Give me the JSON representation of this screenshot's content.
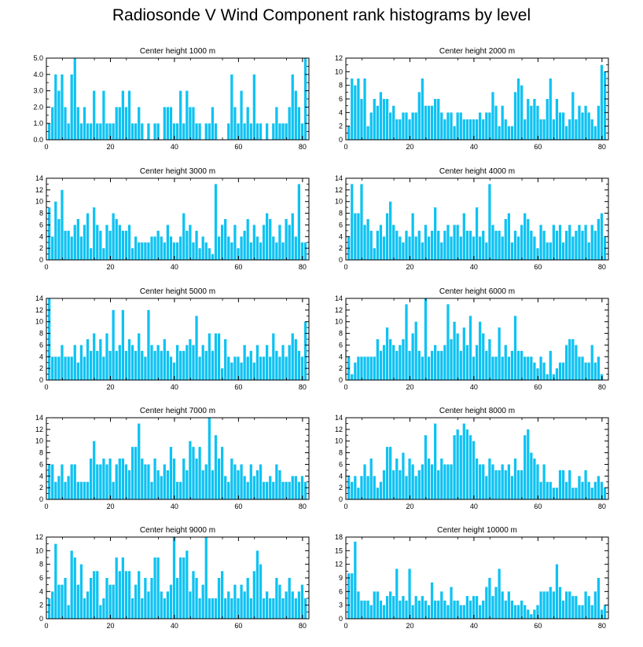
{
  "title": "Radiosonde V Wind Component rank histograms by level",
  "colors": {
    "bar": "#0ec2f2",
    "bar_edge": "#ffffff",
    "axis": "#000000"
  },
  "chart_data": [
    {
      "type": "bar",
      "title": "Center height 1000 m",
      "xlim": [
        0,
        82
      ],
      "ylim": [
        0,
        5
      ],
      "yticks": [
        0,
        1,
        2,
        3,
        4,
        5
      ],
      "ytick_labels": [
        "0.0",
        "1.0",
        "2.0",
        "3.0",
        "4.0",
        "5.0"
      ],
      "xticks": [
        0,
        20,
        40,
        60,
        80
      ],
      "xtick_labels": [
        "0",
        "20",
        "40",
        "60",
        "80"
      ],
      "values": [
        1,
        2,
        4,
        3,
        4,
        2,
        1,
        4,
        5,
        2,
        1,
        2,
        1,
        1,
        3,
        1,
        1,
        3,
        1,
        1,
        1,
        2,
        2,
        3,
        2,
        3,
        1,
        1,
        2,
        1,
        0,
        1,
        0,
        1,
        1,
        0,
        2,
        2,
        2,
        1,
        1,
        3,
        1,
        3,
        2,
        2,
        1,
        1,
        0,
        1,
        1,
        2,
        1,
        0,
        0,
        0,
        1,
        4,
        2,
        1,
        3,
        1,
        2,
        1,
        4,
        1,
        1,
        0,
        1,
        0,
        1,
        2,
        1,
        1,
        1,
        2,
        4,
        3,
        2,
        1,
        5
      ]
    },
    {
      "type": "bar",
      "title": "Center height 2000 m",
      "xlim": [
        0,
        82
      ],
      "ylim": [
        0,
        12
      ],
      "yticks": [
        0,
        2,
        4,
        6,
        8,
        10,
        12
      ],
      "ytick_labels": [
        "0",
        "2",
        "4",
        "6",
        "8",
        "10",
        "12"
      ],
      "xticks": [
        0,
        20,
        40,
        60,
        80
      ],
      "xtick_labels": [
        "0",
        "20",
        "40",
        "60",
        "80"
      ],
      "values": [
        2,
        9,
        8,
        9,
        6,
        9,
        2,
        4,
        6,
        5,
        7,
        6,
        6,
        4,
        5,
        3,
        3,
        4,
        4,
        3,
        4,
        4,
        7,
        9,
        5,
        5,
        5,
        6,
        6,
        4,
        3,
        4,
        4,
        2,
        4,
        4,
        3,
        3,
        3,
        3,
        3,
        4,
        3,
        4,
        4,
        7,
        5,
        2,
        5,
        3,
        2,
        2,
        7,
        9,
        8,
        3,
        6,
        5,
        6,
        5,
        3,
        3,
        6,
        9,
        3,
        6,
        4,
        4,
        2,
        3,
        7,
        3,
        5,
        4,
        5,
        4,
        3,
        2,
        5,
        11,
        10
      ]
    },
    {
      "type": "bar",
      "title": "Center height 3000 m",
      "xlim": [
        0,
        82
      ],
      "ylim": [
        0,
        14
      ],
      "yticks": [
        0,
        2,
        4,
        6,
        8,
        10,
        12,
        14
      ],
      "ytick_labels": [
        "0",
        "2",
        "4",
        "6",
        "8",
        "10",
        "12",
        "14"
      ],
      "xticks": [
        0,
        20,
        40,
        60,
        80
      ],
      "xtick_labels": [
        "0",
        "20",
        "40",
        "60",
        "80"
      ],
      "values": [
        9,
        4,
        10,
        7,
        12,
        5,
        5,
        4,
        6,
        7,
        4,
        6,
        8,
        2,
        9,
        6,
        5,
        2,
        6,
        5,
        8,
        7,
        6,
        5,
        5,
        6,
        2,
        4,
        3,
        3,
        3,
        3,
        4,
        4,
        5,
        4,
        3,
        6,
        4,
        3,
        3,
        4,
        8,
        5,
        6,
        3,
        5,
        2,
        4,
        3,
        2,
        1,
        13,
        4,
        6,
        7,
        4,
        3,
        6,
        2,
        4,
        5,
        7,
        3,
        6,
        4,
        3,
        6,
        8,
        7,
        4,
        3,
        6,
        3,
        7,
        6,
        8,
        4,
        13,
        3,
        3
      ]
    },
    {
      "type": "bar",
      "title": "Center height 4000 m",
      "xlim": [
        0,
        82
      ],
      "ylim": [
        0,
        14
      ],
      "yticks": [
        0,
        2,
        4,
        6,
        8,
        10,
        12,
        14
      ],
      "ytick_labels": [
        "0",
        "2",
        "4",
        "6",
        "8",
        "10",
        "12",
        "14"
      ],
      "xticks": [
        0,
        20,
        40,
        60,
        80
      ],
      "xtick_labels": [
        "0",
        "20",
        "40",
        "60",
        "80"
      ],
      "values": [
        4,
        13,
        8,
        8,
        13,
        6,
        7,
        5,
        2,
        5,
        6,
        4,
        8,
        10,
        6,
        5,
        4,
        3,
        5,
        4,
        8,
        4,
        5,
        3,
        6,
        4,
        5,
        9,
        5,
        3,
        5,
        6,
        4,
        6,
        6,
        4,
        8,
        5,
        5,
        4,
        9,
        4,
        5,
        3,
        13,
        6,
        5,
        5,
        4,
        7,
        8,
        3,
        5,
        4,
        6,
        8,
        7,
        5,
        4,
        2,
        6,
        5,
        3,
        3,
        6,
        5,
        6,
        3,
        5,
        6,
        4,
        5,
        6,
        5,
        6,
        3,
        6,
        5,
        7,
        8,
        4
      ]
    },
    {
      "type": "bar",
      "title": "Center height 5000 m",
      "xlim": [
        0,
        82
      ],
      "ylim": [
        0,
        14
      ],
      "yticks": [
        0,
        2,
        4,
        6,
        8,
        10,
        12,
        14
      ],
      "ytick_labels": [
        "0",
        "2",
        "4",
        "6",
        "8",
        "10",
        "12",
        "14"
      ],
      "xticks": [
        0,
        20,
        40,
        60,
        80
      ],
      "xtick_labels": [
        "0",
        "20",
        "40",
        "60",
        "80"
      ],
      "values": [
        14,
        4,
        4,
        4,
        6,
        4,
        4,
        4,
        6,
        3,
        6,
        4,
        7,
        5,
        8,
        5,
        7,
        4,
        8,
        5,
        12,
        5,
        6,
        12,
        5,
        7,
        6,
        5,
        8,
        5,
        4,
        12,
        6,
        5,
        6,
        5,
        7,
        5,
        4,
        3,
        6,
        5,
        5,
        6,
        7,
        6,
        11,
        4,
        6,
        5,
        8,
        5,
        8,
        8,
        2,
        7,
        4,
        3,
        4,
        4,
        3,
        6,
        4,
        5,
        3,
        6,
        4,
        4,
        6,
        4,
        8,
        5,
        4,
        6,
        4,
        6,
        8,
        7,
        5,
        4,
        10
      ]
    },
    {
      "type": "bar",
      "title": "Center height 6000 m",
      "xlim": [
        0,
        82
      ],
      "ylim": [
        0,
        14
      ],
      "yticks": [
        0,
        2,
        4,
        6,
        8,
        10,
        12,
        14
      ],
      "ytick_labels": [
        "0",
        "2",
        "4",
        "6",
        "8",
        "10",
        "12",
        "14"
      ],
      "xticks": [
        0,
        20,
        40,
        60,
        80
      ],
      "xtick_labels": [
        "0",
        "20",
        "40",
        "60",
        "80"
      ],
      "values": [
        4,
        1,
        3,
        4,
        4,
        4,
        4,
        4,
        4,
        7,
        5,
        6,
        9,
        7,
        6,
        5,
        6,
        7,
        13,
        5,
        8,
        10,
        5,
        4,
        14,
        4,
        5,
        6,
        5,
        5,
        6,
        13,
        7,
        10,
        8,
        5,
        9,
        6,
        11,
        4,
        6,
        10,
        8,
        5,
        7,
        4,
        4,
        9,
        4,
        6,
        4,
        5,
        11,
        5,
        5,
        4,
        4,
        4,
        3,
        2,
        4,
        3,
        1,
        5,
        1,
        2,
        3,
        3,
        6,
        7,
        7,
        6,
        4,
        4,
        3,
        3,
        6,
        3,
        4,
        1,
        0
      ]
    },
    {
      "type": "bar",
      "title": "Center height 7000 m",
      "xlim": [
        0,
        82
      ],
      "ylim": [
        0,
        14
      ],
      "yticks": [
        0,
        2,
        4,
        6,
        8,
        10,
        12,
        14
      ],
      "ytick_labels": [
        "0",
        "2",
        "4",
        "6",
        "8",
        "10",
        "12",
        "14"
      ],
      "xticks": [
        0,
        20,
        40,
        60,
        80
      ],
      "xtick_labels": [
        "0",
        "20",
        "40",
        "60",
        "80"
      ],
      "values": [
        6,
        6,
        3,
        4,
        6,
        3,
        4,
        6,
        6,
        3,
        3,
        3,
        3,
        7,
        10,
        6,
        6,
        7,
        6,
        7,
        3,
        6,
        7,
        7,
        6,
        5,
        9,
        9,
        13,
        7,
        6,
        6,
        3,
        7,
        5,
        4,
        6,
        5,
        9,
        7,
        3,
        3,
        7,
        5,
        10,
        9,
        7,
        9,
        5,
        6,
        14,
        5,
        11,
        7,
        9,
        4,
        3,
        7,
        6,
        5,
        6,
        4,
        3,
        6,
        4,
        5,
        6,
        3,
        3,
        4,
        3,
        6,
        5,
        3,
        3,
        3,
        4,
        4,
        3,
        4,
        3
      ]
    },
    {
      "type": "bar",
      "title": "Center height 8000 m",
      "xlim": [
        0,
        82
      ],
      "ylim": [
        0,
        14
      ],
      "yticks": [
        0,
        2,
        4,
        6,
        8,
        10,
        12,
        14
      ],
      "ytick_labels": [
        "0",
        "2",
        "4",
        "6",
        "8",
        "10",
        "12",
        "14"
      ],
      "xticks": [
        0,
        20,
        40,
        60,
        80
      ],
      "xtick_labels": [
        "0",
        "20",
        "40",
        "60",
        "80"
      ],
      "values": [
        4,
        3,
        4,
        2,
        4,
        6,
        4,
        7,
        4,
        2,
        3,
        5,
        9,
        9,
        5,
        7,
        5,
        8,
        4,
        7,
        6,
        4,
        5,
        6,
        11,
        7,
        6,
        13,
        5,
        7,
        6,
        6,
        6,
        11,
        12,
        11,
        13,
        12,
        11,
        10,
        7,
        6,
        6,
        4,
        7,
        6,
        5,
        5,
        6,
        5,
        6,
        4,
        7,
        5,
        5,
        11,
        12,
        8,
        7,
        6,
        3,
        6,
        3,
        3,
        2,
        2,
        5,
        5,
        3,
        5,
        2,
        2,
        4,
        3,
        5,
        3,
        2,
        3,
        4,
        3,
        2
      ]
    },
    {
      "type": "bar",
      "title": "Center height 9000 m",
      "xlim": [
        0,
        82
      ],
      "ylim": [
        0,
        12
      ],
      "yticks": [
        0,
        2,
        4,
        6,
        8,
        10,
        12
      ],
      "ytick_labels": [
        "0",
        "2",
        "4",
        "6",
        "8",
        "10",
        "12"
      ],
      "xticks": [
        0,
        20,
        40,
        60,
        80
      ],
      "xtick_labels": [
        "0",
        "20",
        "40",
        "60",
        "80"
      ],
      "values": [
        3,
        4,
        11,
        5,
        5,
        6,
        2,
        10,
        9,
        5,
        8,
        3,
        4,
        6,
        7,
        7,
        2,
        3,
        6,
        5,
        5,
        9,
        7,
        9,
        7,
        7,
        3,
        5,
        7,
        3,
        6,
        4,
        6,
        9,
        9,
        4,
        3,
        4,
        5,
        12,
        6,
        9,
        9,
        10,
        4,
        7,
        6,
        3,
        5,
        12,
        3,
        3,
        3,
        6,
        7,
        3,
        4,
        3,
        5,
        3,
        5,
        4,
        6,
        3,
        7,
        10,
        8,
        3,
        4,
        3,
        3,
        6,
        5,
        3,
        4,
        6,
        4,
        3,
        4,
        5,
        3
      ]
    },
    {
      "type": "bar",
      "title": "Center height 10000 m",
      "xlim": [
        0,
        82
      ],
      "ylim": [
        0,
        18
      ],
      "yticks": [
        0,
        3,
        6,
        9,
        12,
        15,
        18
      ],
      "ytick_labels": [
        "0",
        "3",
        "6",
        "9",
        "12",
        "15",
        "18"
      ],
      "xticks": [
        0,
        20,
        40,
        60,
        80
      ],
      "xtick_labels": [
        "0",
        "20",
        "40",
        "60",
        "80"
      ],
      "values": [
        10,
        10,
        17,
        6,
        4,
        4,
        4,
        3,
        6,
        6,
        4,
        3,
        5,
        6,
        5,
        11,
        4,
        5,
        4,
        11,
        3,
        5,
        4,
        5,
        4,
        3,
        8,
        4,
        4,
        6,
        4,
        3,
        7,
        4,
        4,
        3,
        3,
        5,
        4,
        5,
        5,
        3,
        4,
        7,
        9,
        5,
        7,
        11,
        6,
        4,
        6,
        4,
        3,
        3,
        4,
        3,
        2,
        1,
        2,
        3,
        6,
        6,
        6,
        7,
        6,
        12,
        7,
        4,
        6,
        6,
        5,
        5,
        3,
        3,
        6,
        5,
        3,
        6,
        9,
        2,
        3
      ]
    }
  ]
}
